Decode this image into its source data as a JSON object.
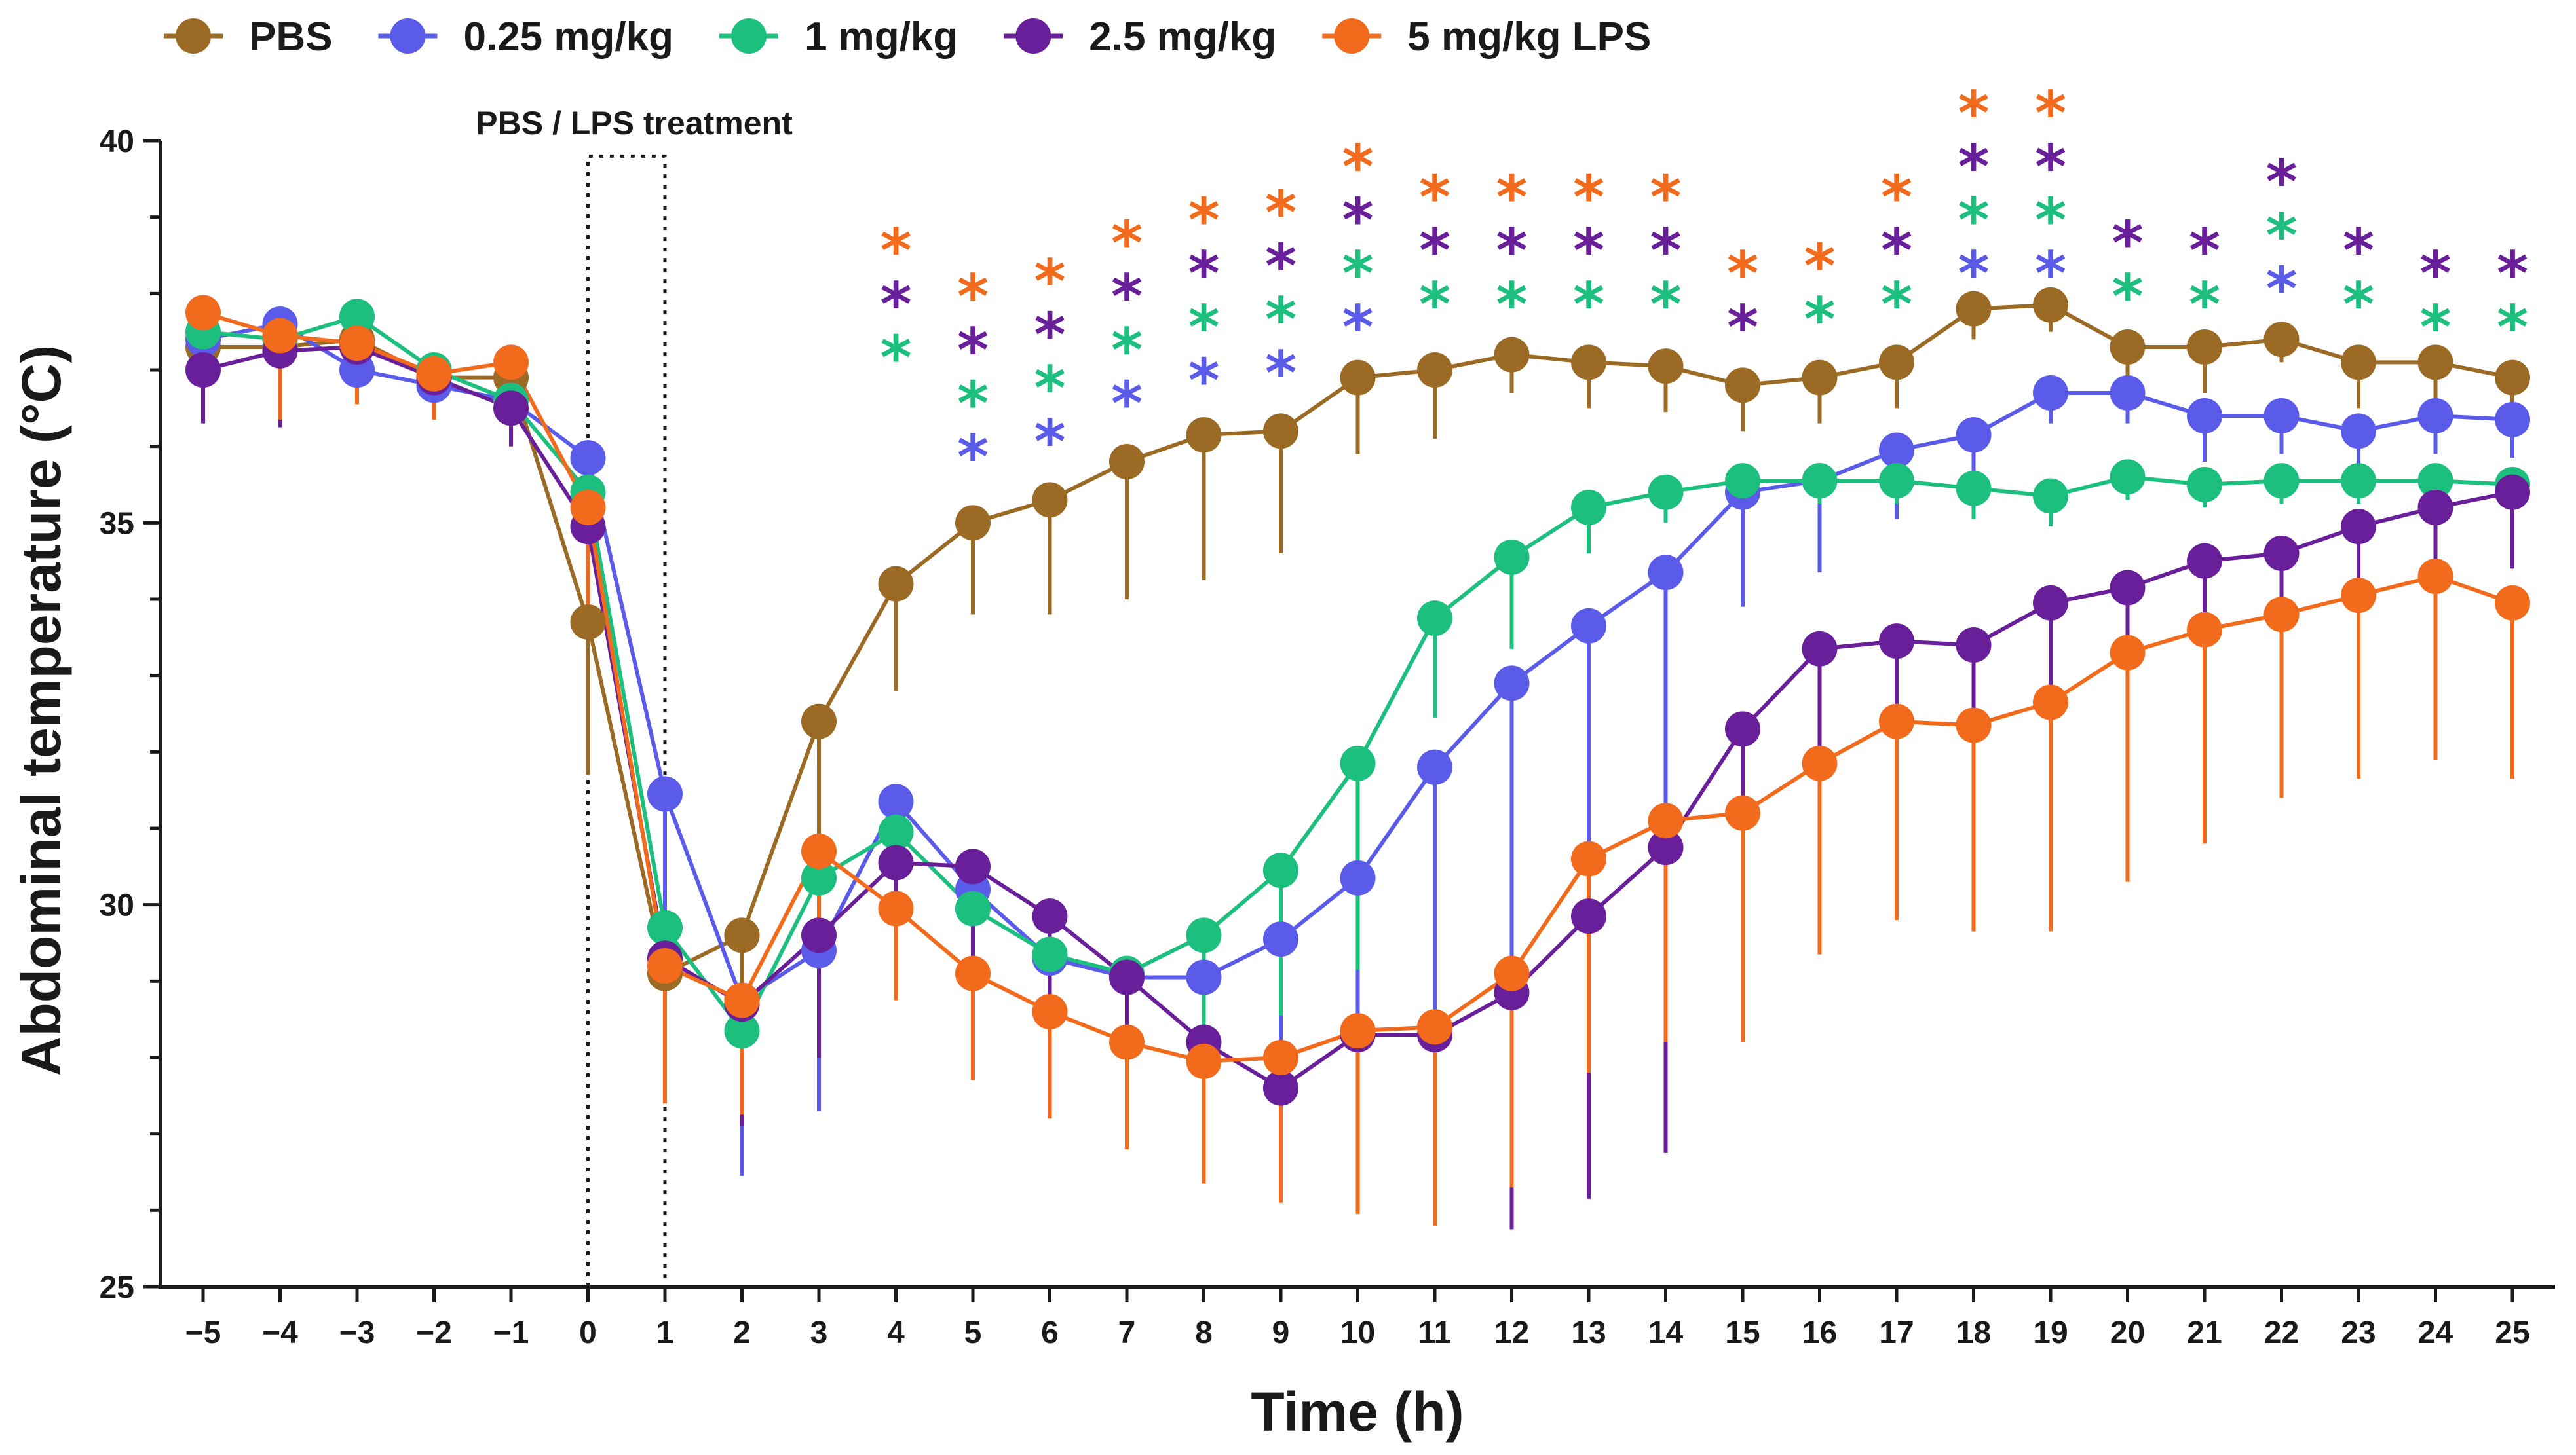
{
  "chart_data": {
    "type": "line",
    "title": "",
    "xlabel": "Time (h)",
    "ylabel": "Abdominal temperature (°C)",
    "xlim": [
      -5,
      25
    ],
    "ylim": [
      25,
      40
    ],
    "x": [
      -5,
      -4,
      -3,
      -2,
      -1,
      0,
      1,
      2,
      3,
      4,
      5,
      6,
      7,
      8,
      9,
      10,
      11,
      12,
      13,
      14,
      15,
      16,
      17,
      18,
      19,
      20,
      21,
      22,
      23,
      24,
      25
    ],
    "x_tick_labels": [
      "−5",
      "−4",
      "−3",
      "−2",
      "−1",
      "0",
      "1",
      "2",
      "3",
      "4",
      "5",
      "6",
      "7",
      "8",
      "9",
      "10",
      "11",
      "12",
      "13",
      "14",
      "15",
      "16",
      "17",
      "18",
      "19",
      "20",
      "21",
      "22",
      "23",
      "24",
      "25"
    ],
    "y_ticks": [
      25,
      30,
      35,
      40
    ],
    "y_tick_labels": [
      "25",
      "30",
      "35",
      "40"
    ],
    "annotation": {
      "label": "PBS / LPS treatment",
      "x_start": 0,
      "x_end": 1,
      "y_top": 39.8
    },
    "series": [
      {
        "name": "PBS",
        "color": "#9b6a24",
        "error_direction": "down",
        "values": [
          37.3,
          37.3,
          37.4,
          36.9,
          36.9,
          33.7,
          29.1,
          29.6,
          32.4,
          34.2,
          35.0,
          35.3,
          35.8,
          36.15,
          36.2,
          36.9,
          37.0,
          37.2,
          37.1,
          37.05,
          36.8,
          36.9,
          37.1,
          37.8,
          37.85,
          37.3,
          37.3,
          37.4,
          37.1,
          37.1,
          36.9
        ],
        "errors": [
          0.5,
          0.9,
          0.5,
          0.5,
          0.4,
          2.0,
          1.5,
          2.0,
          1.8,
          1.4,
          1.2,
          1.5,
          1.8,
          1.9,
          1.6,
          1.0,
          0.9,
          0.5,
          0.6,
          0.6,
          0.6,
          0.6,
          0.6,
          0.4,
          0.35,
          0.5,
          0.6,
          0.3,
          0.6,
          0.6,
          0.6
        ]
      },
      {
        "name": "0.25 mg/kg",
        "color": "#5b5bea",
        "error_direction": "down",
        "values": [
          37.4,
          37.6,
          37.0,
          36.8,
          36.6,
          35.85,
          31.45,
          28.75,
          29.4,
          31.35,
          30.2,
          29.3,
          29.05,
          29.05,
          29.55,
          30.35,
          31.8,
          32.9,
          33.65,
          34.35,
          35.4,
          35.55,
          35.95,
          36.15,
          36.7,
          36.7,
          36.4,
          36.4,
          36.2,
          36.4,
          36.35
        ],
        "errors": [
          0.4,
          0.9,
          0.4,
          0.4,
          0.4,
          0.4,
          2.0,
          2.3,
          2.1,
          1.4,
          1.6,
          1.4,
          1.3,
          1.6,
          3.2,
          3.8,
          4.5,
          5.1,
          5.4,
          5.3,
          1.5,
          1.2,
          0.9,
          0.5,
          0.4,
          0.4,
          0.6,
          0.5,
          0.7,
          0.5,
          0.5
        ]
      },
      {
        "name": "1 mg/kg",
        "color": "#1dbf7e",
        "error_direction": "down",
        "values": [
          37.5,
          37.4,
          37.7,
          37.0,
          36.6,
          35.4,
          29.7,
          28.35,
          30.35,
          30.95,
          29.95,
          29.35,
          29.1,
          29.6,
          30.45,
          31.85,
          33.75,
          34.55,
          35.2,
          35.4,
          35.55,
          35.55,
          35.55,
          35.45,
          35.35,
          35.6,
          35.5,
          35.55,
          35.55,
          35.55,
          35.5
        ],
        "errors": [
          0.4,
          0.4,
          0.4,
          0.5,
          0.4,
          0.8,
          2.1,
          1.1,
          1.4,
          1.3,
          1.4,
          1.4,
          1.5,
          1.4,
          1.9,
          2.7,
          1.3,
          1.2,
          0.6,
          0.4,
          0.3,
          0.3,
          0.3,
          0.4,
          0.4,
          0.3,
          0.3,
          0.3,
          0.3,
          0.3,
          0.3
        ]
      },
      {
        "name": "2.5 mg/kg",
        "color": "#6a1f9a",
        "error_direction": "down",
        "values": [
          37.0,
          37.25,
          37.3,
          36.9,
          36.5,
          34.95,
          29.3,
          28.7,
          29.6,
          30.55,
          30.5,
          29.85,
          29.05,
          28.2,
          27.6,
          28.3,
          28.3,
          28.85,
          29.85,
          30.75,
          32.3,
          33.35,
          33.45,
          33.4,
          33.95,
          34.15,
          34.5,
          34.6,
          34.95,
          35.2,
          35.4
        ],
        "errors": [
          0.7,
          1.0,
          0.5,
          0.5,
          0.5,
          1.0,
          1.7,
          1.6,
          1.6,
          1.2,
          1.6,
          1.6,
          1.3,
          1.5,
          1.2,
          1.7,
          2.5,
          3.1,
          3.7,
          4.0,
          3.9,
          2.6,
          2.3,
          2.3,
          2.3,
          1.7,
          1.5,
          1.2,
          1.0,
          1.0,
          1.0
        ]
      },
      {
        "name": "5 mg/kg LPS",
        "color": "#f26a1b",
        "error_direction": "down",
        "values": [
          37.75,
          37.45,
          37.35,
          36.95,
          37.1,
          35.2,
          29.2,
          28.75,
          30.7,
          29.95,
          29.1,
          28.6,
          28.2,
          27.95,
          28.0,
          28.35,
          28.4,
          29.1,
          30.6,
          31.1,
          31.2,
          31.85,
          32.4,
          32.35,
          32.65,
          33.3,
          33.6,
          33.8,
          34.05,
          34.3,
          33.95
        ],
        "errors": [
          0.8,
          1.1,
          0.8,
          0.6,
          0.8,
          1.4,
          1.8,
          1.5,
          1.4,
          1.2,
          1.4,
          1.4,
          1.4,
          1.6,
          1.9,
          2.4,
          2.6,
          2.8,
          2.8,
          2.9,
          3.0,
          2.5,
          2.6,
          2.7,
          3.0,
          3.0,
          2.8,
          2.4,
          2.4,
          2.4,
          2.3
        ]
      }
    ],
    "significance": {
      "symbol": "*",
      "markers": [
        {
          "x": 4,
          "y": 38.7,
          "series": "5 mg/kg LPS"
        },
        {
          "x": 4,
          "y": 38.0,
          "series": "2.5 mg/kg"
        },
        {
          "x": 4,
          "y": 37.3,
          "series": "1 mg/kg"
        },
        {
          "x": 5,
          "y": 38.1,
          "series": "5 mg/kg LPS"
        },
        {
          "x": 5,
          "y": 37.4,
          "series": "2.5 mg/kg"
        },
        {
          "x": 5,
          "y": 36.7,
          "series": "1 mg/kg"
        },
        {
          "x": 5,
          "y": 36.0,
          "series": "0.25 mg/kg"
        },
        {
          "x": 6,
          "y": 38.3,
          "series": "5 mg/kg LPS"
        },
        {
          "x": 6,
          "y": 37.6,
          "series": "2.5 mg/kg"
        },
        {
          "x": 6,
          "y": 36.9,
          "series": "1 mg/kg"
        },
        {
          "x": 6,
          "y": 36.2,
          "series": "0.25 mg/kg"
        },
        {
          "x": 7,
          "y": 38.8,
          "series": "5 mg/kg LPS"
        },
        {
          "x": 7,
          "y": 38.1,
          "series": "2.5 mg/kg"
        },
        {
          "x": 7,
          "y": 37.4,
          "series": "1 mg/kg"
        },
        {
          "x": 7,
          "y": 36.7,
          "series": "0.25 mg/kg"
        },
        {
          "x": 8,
          "y": 39.1,
          "series": "5 mg/kg LPS"
        },
        {
          "x": 8,
          "y": 38.4,
          "series": "2.5 mg/kg"
        },
        {
          "x": 8,
          "y": 37.7,
          "series": "1 mg/kg"
        },
        {
          "x": 8,
          "y": 37.0,
          "series": "0.25 mg/kg"
        },
        {
          "x": 9,
          "y": 39.2,
          "series": "5 mg/kg LPS"
        },
        {
          "x": 9,
          "y": 38.5,
          "series": "2.5 mg/kg"
        },
        {
          "x": 9,
          "y": 37.8,
          "series": "1 mg/kg"
        },
        {
          "x": 9,
          "y": 37.1,
          "series": "0.25 mg/kg"
        },
        {
          "x": 10,
          "y": 39.8,
          "series": "5 mg/kg LPS"
        },
        {
          "x": 10,
          "y": 39.1,
          "series": "2.5 mg/kg"
        },
        {
          "x": 10,
          "y": 38.4,
          "series": "1 mg/kg"
        },
        {
          "x": 10,
          "y": 37.7,
          "series": "0.25 mg/kg"
        },
        {
          "x": 11,
          "y": 39.4,
          "series": "5 mg/kg LPS"
        },
        {
          "x": 11,
          "y": 38.7,
          "series": "2.5 mg/kg"
        },
        {
          "x": 11,
          "y": 38.0,
          "series": "1 mg/kg"
        },
        {
          "x": 12,
          "y": 39.4,
          "series": "5 mg/kg LPS"
        },
        {
          "x": 12,
          "y": 38.7,
          "series": "2.5 mg/kg"
        },
        {
          "x": 12,
          "y": 38.0,
          "series": "1 mg/kg"
        },
        {
          "x": 13,
          "y": 39.4,
          "series": "5 mg/kg LPS"
        },
        {
          "x": 13,
          "y": 38.7,
          "series": "2.5 mg/kg"
        },
        {
          "x": 13,
          "y": 38.0,
          "series": "1 mg/kg"
        },
        {
          "x": 14,
          "y": 39.4,
          "series": "5 mg/kg LPS"
        },
        {
          "x": 14,
          "y": 38.7,
          "series": "2.5 mg/kg"
        },
        {
          "x": 14,
          "y": 38.0,
          "series": "1 mg/kg"
        },
        {
          "x": 15,
          "y": 38.4,
          "series": "5 mg/kg LPS"
        },
        {
          "x": 15,
          "y": 37.7,
          "series": "2.5 mg/kg"
        },
        {
          "x": 16,
          "y": 38.5,
          "series": "5 mg/kg LPS"
        },
        {
          "x": 16,
          "y": 37.8,
          "series": "1 mg/kg"
        },
        {
          "x": 17,
          "y": 39.4,
          "series": "5 mg/kg LPS"
        },
        {
          "x": 17,
          "y": 38.7,
          "series": "2.5 mg/kg"
        },
        {
          "x": 17,
          "y": 38.0,
          "series": "1 mg/kg"
        },
        {
          "x": 18,
          "y": 40.5,
          "series": "5 mg/kg LPS"
        },
        {
          "x": 18,
          "y": 39.8,
          "series": "2.5 mg/kg"
        },
        {
          "x": 18,
          "y": 39.1,
          "series": "1 mg/kg"
        },
        {
          "x": 18,
          "y": 38.4,
          "series": "0.25 mg/kg"
        },
        {
          "x": 19,
          "y": 40.5,
          "series": "5 mg/kg LPS"
        },
        {
          "x": 19,
          "y": 39.8,
          "series": "2.5 mg/kg"
        },
        {
          "x": 19,
          "y": 39.1,
          "series": "1 mg/kg"
        },
        {
          "x": 19,
          "y": 38.4,
          "series": "0.25 mg/kg"
        },
        {
          "x": 20,
          "y": 38.8,
          "series": "2.5 mg/kg"
        },
        {
          "x": 20,
          "y": 38.1,
          "series": "1 mg/kg"
        },
        {
          "x": 21,
          "y": 38.7,
          "series": "2.5 mg/kg"
        },
        {
          "x": 21,
          "y": 38.0,
          "series": "1 mg/kg"
        },
        {
          "x": 22,
          "y": 39.6,
          "series": "2.5 mg/kg"
        },
        {
          "x": 22,
          "y": 38.9,
          "series": "1 mg/kg"
        },
        {
          "x": 22,
          "y": 38.2,
          "series": "0.25 mg/kg"
        },
        {
          "x": 23,
          "y": 38.7,
          "series": "2.5 mg/kg"
        },
        {
          "x": 23,
          "y": 38.0,
          "series": "1 mg/kg"
        },
        {
          "x": 24,
          "y": 38.4,
          "series": "2.5 mg/kg"
        },
        {
          "x": 24,
          "y": 37.7,
          "series": "1 mg/kg"
        },
        {
          "x": 25,
          "y": 38.4,
          "series": "2.5 mg/kg"
        },
        {
          "x": 25,
          "y": 37.7,
          "series": "1 mg/kg"
        }
      ]
    }
  }
}
